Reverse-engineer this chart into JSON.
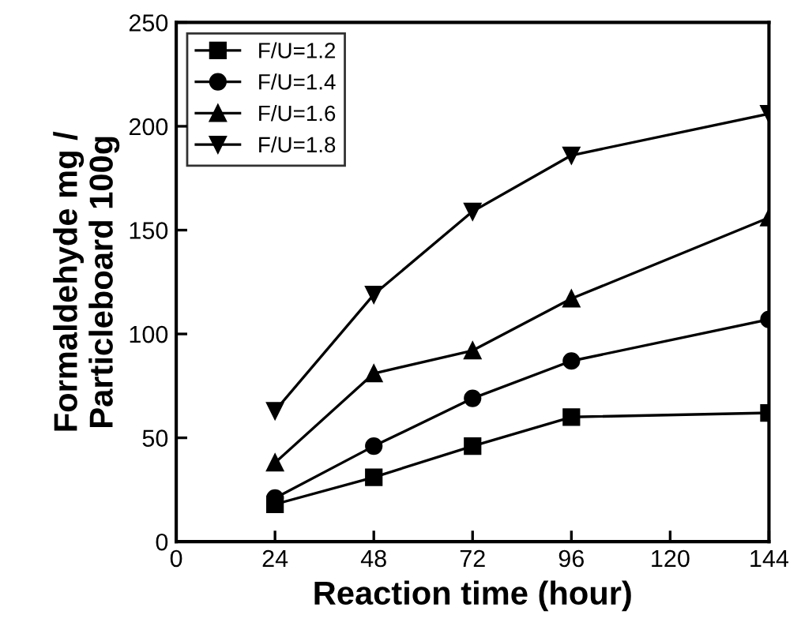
{
  "chart_data": {
    "type": "line",
    "xlabel": "Reaction time (hour)",
    "ylabel": "Formaldehyde mg /\nParticleboard 100g",
    "x": [
      24,
      48,
      72,
      96,
      144
    ],
    "series": [
      {
        "name": "F/U=1.2",
        "color": "#000000",
        "marker": "square",
        "values": [
          18,
          31,
          46,
          60,
          62
        ]
      },
      {
        "name": "F/U=1.4",
        "color": "#000000",
        "marker": "circle",
        "values": [
          21,
          46,
          69,
          87,
          107
        ]
      },
      {
        "name": "F/U=1.6",
        "color": "#000000",
        "marker": "triangle",
        "values": [
          38,
          81,
          92,
          117,
          156
        ]
      },
      {
        "name": "F/U=1.8",
        "color": "#000000",
        "marker": "triangle_down",
        "values": [
          63,
          119,
          159,
          186,
          206
        ]
      }
    ],
    "xlim": [
      0,
      144
    ],
    "xticks": [
      0,
      24,
      48,
      72,
      96,
      120,
      144
    ],
    "ylim": [
      0,
      250
    ],
    "yticks": [
      0,
      50,
      100,
      150,
      200,
      250
    ],
    "grid": false,
    "legend": "top left",
    "line_style": "solid"
  }
}
